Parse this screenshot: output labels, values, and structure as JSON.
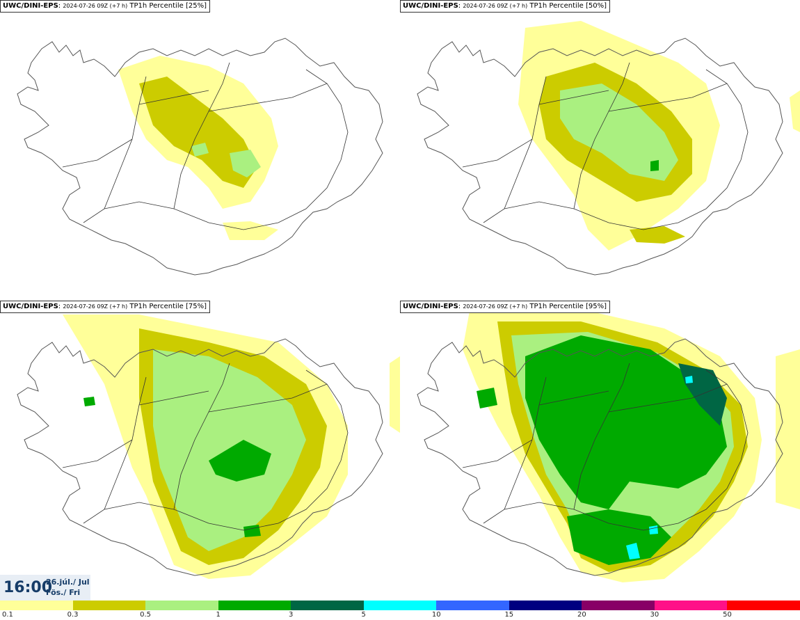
{
  "panels": [
    {
      "source": "UWC/DINI-EPS",
      "run": "2024-07-26 09Z (+7 h)",
      "field": "TP1h Percentile [25%]"
    },
    {
      "source": "UWC/DINI-EPS",
      "run": "2024-07-26 09Z (+7 h)",
      "field": "TP1h Percentile [50%]"
    },
    {
      "source": "UWC/DINI-EPS",
      "run": "2024-07-26 09Z (+7 h)",
      "field": "TP1h Percentile [75%]"
    },
    {
      "source": "UWC/DINI-EPS",
      "run": "2024-07-26 09Z (+7 h)",
      "field": "TP1h Percentile [95%]"
    }
  ],
  "time": {
    "clock": "16:00",
    "date": "26.júl./ Jul",
    "weekday": "Fös./ Fri"
  },
  "legend": {
    "levels": [
      "0.1",
      "0.3",
      "0.5",
      "1",
      "3",
      "5",
      "10",
      "15",
      "20",
      "30",
      "50"
    ],
    "colors": [
      "#ffff99",
      "#cccc00",
      "#aaf080",
      "#00aa00",
      "#006644",
      "#00ffff",
      "#3366ff",
      "#000080",
      "#880066",
      "#ff1188",
      "#ff0000"
    ]
  }
}
